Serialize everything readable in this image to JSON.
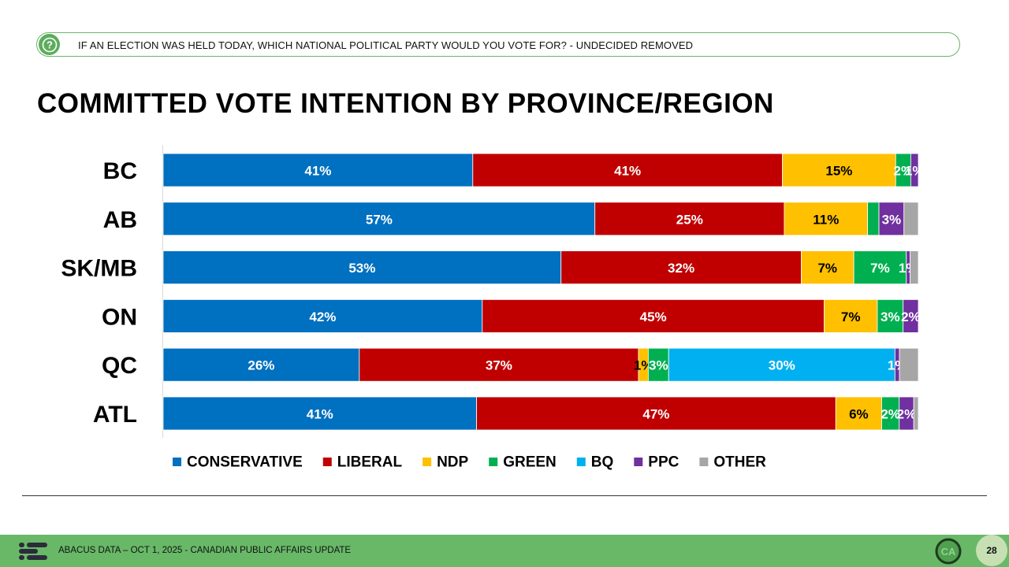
{
  "question": "IF AN ELECTION WAS HELD TODAY, WHICH NATIONAL POLITICAL PARTY WOULD YOU VOTE FOR? - UNDECIDED REMOVED",
  "title": "COMMITTED VOTE INTENTION BY PROVINCE/REGION",
  "footer": {
    "text": "ABACUS DATA – OCT 1, 2025 - CANADIAN PUBLIC AFFAIRS UPDATE",
    "logo_text": "CA",
    "page_number": "28"
  },
  "colors": {
    "conservative": "#0070c0",
    "liberal": "#c00000",
    "ndp": "#ffc000",
    "green": "#00b050",
    "bq": "#00b0f0",
    "ppc": "#7030a0",
    "other": "#a6a6a6",
    "brand_green": "#68b868"
  },
  "chart_data": {
    "type": "bar",
    "orientation": "horizontal",
    "stacked": true,
    "categories": [
      "BC",
      "AB",
      "SK/MB",
      "ON",
      "QC",
      "ATL"
    ],
    "series": [
      {
        "name": "CONSERVATIVE",
        "values": [
          41,
          57,
          53,
          42,
          26,
          41
        ],
        "labels": [
          "41%",
          "57%",
          "53%",
          "42%",
          "26%",
          "41%"
        ]
      },
      {
        "name": "LIBERAL",
        "values": [
          41,
          25,
          32,
          45,
          37,
          47
        ],
        "labels": [
          "41%",
          "25%",
          "32%",
          "45%",
          "37%",
          "47%"
        ]
      },
      {
        "name": "NDP",
        "values": [
          15,
          11,
          7,
          7,
          1.3,
          6
        ],
        "labels": [
          "15%",
          "11%",
          "7%",
          "7%",
          "1%",
          "6%"
        ]
      },
      {
        "name": "GREEN",
        "values": [
          2,
          1.5,
          7,
          3.4,
          2.7,
          2.3
        ],
        "labels": [
          "2%",
          "",
          "7%",
          "3%",
          "3%",
          "2%"
        ]
      },
      {
        "name": "BQ",
        "values": [
          0,
          0,
          0,
          0,
          30,
          0
        ],
        "labels": [
          "",
          "",
          "",
          "",
          "30%",
          ""
        ]
      },
      {
        "name": "PPC",
        "values": [
          1,
          3.3,
          0.5,
          2,
          0.6,
          1.9
        ],
        "labels": [
          "1%",
          "3%",
          "1%",
          "2%",
          "1%",
          "2%"
        ]
      },
      {
        "name": "OTHER",
        "values": [
          0,
          1.9,
          1.1,
          0,
          2.5,
          0.6
        ],
        "labels": [
          "",
          "",
          "",
          "",
          "",
          ""
        ]
      }
    ],
    "xlim": [
      0,
      100
    ],
    "legend": [
      "CONSERVATIVE",
      "LIBERAL",
      "NDP",
      "GREEN",
      "BQ",
      "PPC",
      "OTHER"
    ],
    "legend_position": "bottom"
  }
}
